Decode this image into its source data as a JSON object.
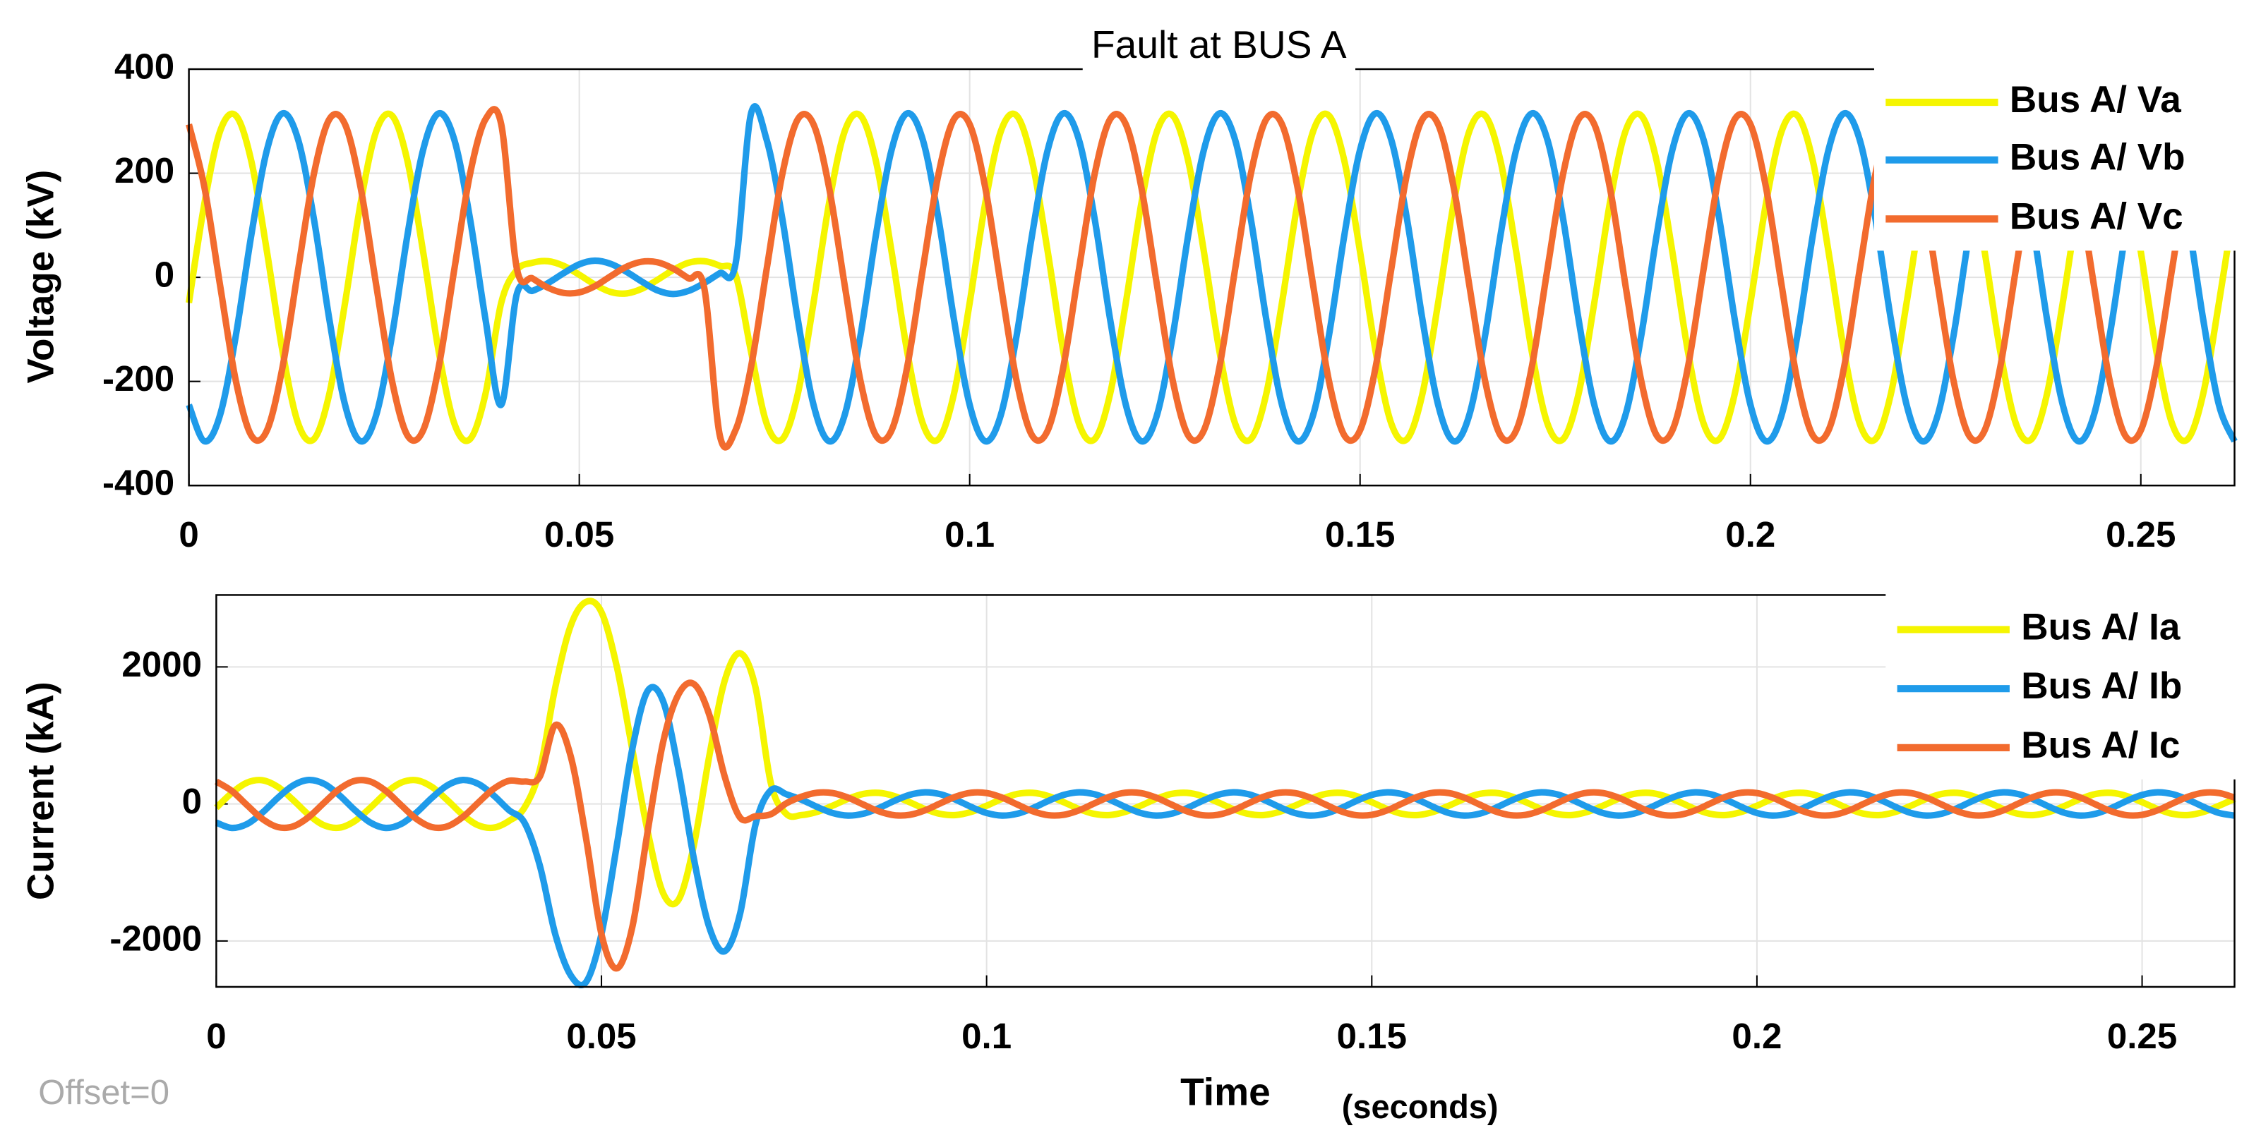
{
  "chart_data": [
    {
      "type": "line",
      "title": "Fault at BUS A",
      "y_label": "Voltage  (kV)",
      "grid": true,
      "legend": "upper right",
      "x": [
        0,
        0.002,
        0.004,
        0.006,
        0.008,
        0.01,
        0.012,
        0.014,
        0.016,
        0.018,
        0.02,
        0.022,
        0.024,
        0.026,
        0.028,
        0.03,
        0.032,
        0.034,
        0.036,
        0.038,
        0.04,
        0.042,
        0.044,
        0.046,
        0.048,
        0.05,
        0.052,
        0.054,
        0.056,
        0.058,
        0.06,
        0.062,
        0.064,
        0.066,
        0.068,
        0.07,
        0.072,
        0.074,
        0.076,
        0.078,
        0.08,
        0.082,
        0.084,
        0.086,
        0.088,
        0.09,
        0.092,
        0.094,
        0.096,
        0.098,
        0.1,
        0.102,
        0.104,
        0.106,
        0.108,
        0.11,
        0.112,
        0.114,
        0.116,
        0.118,
        0.12,
        0.122,
        0.124,
        0.126,
        0.128,
        0.13,
        0.132,
        0.134,
        0.136,
        0.138,
        0.14,
        0.142,
        0.144,
        0.146,
        0.148,
        0.15,
        0.152,
        0.154,
        0.156,
        0.158,
        0.16,
        0.162,
        0.164,
        0.166,
        0.168,
        0.17,
        0.172,
        0.174,
        0.176,
        0.178,
        0.18,
        0.182,
        0.184,
        0.186,
        0.188,
        0.19,
        0.192,
        0.194,
        0.196,
        0.198,
        0.2,
        0.202,
        0.204,
        0.206,
        0.208,
        0.21,
        0.212,
        0.214,
        0.216,
        0.218,
        0.22,
        0.222,
        0.224,
        0.226,
        0.228,
        0.23,
        0.232,
        0.234,
        0.236,
        0.238,
        0.24,
        0.242,
        0.244,
        0.246,
        0.248,
        0.25,
        0.252,
        0.254,
        0.256,
        0.258,
        0.26,
        0.262
      ],
      "xlim": [
        0,
        0.262
      ],
      "xticks": [
        0,
        0.05,
        0.1,
        0.15,
        0.2,
        0.25
      ],
      "ylim": [
        -400,
        400
      ],
      "yticks": [
        -400,
        -200,
        0,
        200,
        400
      ],
      "series": [
        {
          "name": "Bus A/ Va",
          "color": "#f5f500",
          "values": [
            -49,
            143,
            281,
            311,
            223,
            49,
            -143,
            -281,
            -311,
            -223,
            -49,
            143,
            281,
            311,
            223,
            49,
            -143,
            -281,
            -311,
            -223,
            -49,
            14,
            28,
            31,
            22,
            5,
            -14,
            -28,
            -31,
            -22,
            -5,
            14,
            28,
            31,
            22,
            5,
            -143,
            -281,
            -311,
            -223,
            -49,
            143,
            281,
            311,
            223,
            49,
            -143,
            -281,
            -311,
            -223,
            -49,
            143,
            281,
            311,
            223,
            49,
            -143,
            -281,
            -311,
            -223,
            -49,
            143,
            281,
            311,
            223,
            49,
            -143,
            -281,
            -311,
            -223,
            -49,
            143,
            281,
            311,
            223,
            49,
            -143,
            -281,
            -311,
            -223,
            -49,
            143,
            281,
            311,
            223,
            49,
            -143,
            -281,
            -311,
            -223,
            -49,
            143,
            281,
            311,
            223,
            49,
            -143,
            -281,
            -311,
            -223,
            -49,
            143,
            281,
            311,
            223,
            49,
            -143,
            -281,
            -311,
            -223,
            -49,
            143,
            281,
            311,
            223,
            49,
            -143,
            -281,
            -311,
            -223,
            -49,
            143,
            281,
            311,
            223,
            49,
            -143,
            -281,
            -311,
            -223,
            -49,
            143
          ]
        },
        {
          "name": "Bus A/ Vb",
          "color": "#1f9bea",
          "values": [
            -245,
            -315,
            -264,
            -113,
            82,
            245,
            315,
            264,
            113,
            -82,
            -245,
            -315,
            -264,
            -113,
            82,
            245,
            315,
            264,
            113,
            -82,
            -245,
            -32,
            -26,
            -11,
            8,
            25,
            32,
            26,
            11,
            -8,
            -25,
            -32,
            -26,
            -11,
            8,
            25,
            315,
            264,
            113,
            -82,
            -245,
            -315,
            -264,
            -113,
            82,
            245,
            315,
            264,
            113,
            -82,
            -245,
            -315,
            -264,
            -113,
            82,
            245,
            315,
            264,
            113,
            -82,
            -245,
            -315,
            -264,
            -113,
            82,
            245,
            315,
            264,
            113,
            -82,
            -245,
            -315,
            -264,
            -113,
            82,
            245,
            315,
            264,
            113,
            -82,
            -245,
            -315,
            -264,
            -113,
            82,
            245,
            315,
            264,
            113,
            -82,
            -245,
            -315,
            -264,
            -113,
            82,
            245,
            315,
            264,
            113,
            -82,
            -245,
            -315,
            -264,
            -113,
            82,
            245,
            315,
            264,
            113,
            -82,
            -245,
            -315,
            -264,
            -113,
            82,
            245,
            315,
            264,
            113,
            -82,
            -245,
            -315,
            -264,
            -113,
            82,
            245,
            315,
            264,
            113,
            -82,
            -245,
            -315
          ]
        },
        {
          "name": "Bus A/ Vc",
          "color": "#f26b2e",
          "values": [
            294,
            172,
            -16,
            -198,
            -304,
            -294,
            -172,
            16,
            198,
            304,
            294,
            172,
            -16,
            -198,
            -304,
            -294,
            -172,
            16,
            198,
            304,
            294,
            17,
            -2,
            -20,
            -30,
            -29,
            -17,
            2,
            20,
            30,
            29,
            17,
            -2,
            -20,
            -304,
            -294,
            -172,
            16,
            198,
            304,
            294,
            172,
            -16,
            -198,
            -304,
            -294,
            -172,
            16,
            198,
            304,
            294,
            172,
            -16,
            -198,
            -304,
            -294,
            -172,
            16,
            198,
            304,
            294,
            172,
            -16,
            -198,
            -304,
            -294,
            -172,
            16,
            198,
            304,
            294,
            172,
            -16,
            -198,
            -304,
            -294,
            -172,
            16,
            198,
            304,
            294,
            172,
            -16,
            -198,
            -304,
            -294,
            -172,
            16,
            198,
            304,
            294,
            172,
            -16,
            -198,
            -304,
            -294,
            -172,
            16,
            198,
            304,
            294,
            172,
            -16,
            -198,
            -304,
            -294,
            -172,
            16,
            198,
            304,
            294,
            172,
            -16,
            -198,
            -304,
            -294,
            -172,
            16,
            198,
            304,
            294,
            172,
            -16,
            -198,
            -304,
            -294,
            -172,
            16,
            198,
            304,
            294,
            172
          ]
        }
      ]
    },
    {
      "type": "line",
      "y_label": "Current (kA)",
      "x_label": "Time",
      "x_label_unit": "(seconds)",
      "annotation": "Offset=0",
      "grid": true,
      "legend": "upper right",
      "x": [
        0,
        0.002,
        0.004,
        0.006,
        0.008,
        0.01,
        0.012,
        0.014,
        0.016,
        0.018,
        0.02,
        0.022,
        0.024,
        0.026,
        0.028,
        0.03,
        0.032,
        0.034,
        0.036,
        0.038,
        0.04,
        0.042,
        0.044,
        0.046,
        0.048,
        0.05,
        0.052,
        0.054,
        0.056,
        0.058,
        0.06,
        0.062,
        0.064,
        0.066,
        0.068,
        0.07,
        0.072,
        0.074,
        0.076,
        0.078,
        0.08,
        0.082,
        0.084,
        0.086,
        0.088,
        0.09,
        0.092,
        0.094,
        0.096,
        0.098,
        0.1,
        0.102,
        0.104,
        0.106,
        0.108,
        0.11,
        0.112,
        0.114,
        0.116,
        0.118,
        0.12,
        0.122,
        0.124,
        0.126,
        0.128,
        0.13,
        0.132,
        0.134,
        0.136,
        0.138,
        0.14,
        0.142,
        0.144,
        0.146,
        0.148,
        0.15,
        0.152,
        0.154,
        0.156,
        0.158,
        0.16,
        0.162,
        0.164,
        0.166,
        0.168,
        0.17,
        0.172,
        0.174,
        0.176,
        0.178,
        0.18,
        0.182,
        0.184,
        0.186,
        0.188,
        0.19,
        0.192,
        0.194,
        0.196,
        0.198,
        0.2,
        0.202,
        0.204,
        0.206,
        0.208,
        0.21,
        0.212,
        0.214,
        0.216,
        0.218,
        0.22,
        0.222,
        0.224,
        0.226,
        0.228,
        0.23,
        0.232,
        0.234,
        0.236,
        0.238,
        0.24,
        0.242,
        0.244,
        0.246,
        0.248,
        0.25,
        0.252,
        0.254,
        0.256,
        0.258,
        0.26,
        0.262
      ],
      "xlim": [
        0,
        0.262
      ],
      "xticks": [
        0,
        0.05,
        0.1,
        0.15,
        0.2,
        0.25
      ],
      "ylim": [
        -2670,
        3050
      ],
      "yticks": [
        -2000,
        0,
        2000
      ],
      "series": [
        {
          "name": "Bus A/ Ia",
          "color": "#f5f500",
          "values": [
            -55,
            159,
            312,
            346,
            248,
            55,
            -159,
            -312,
            -346,
            -248,
            -55,
            159,
            312,
            346,
            248,
            55,
            -159,
            -312,
            -346,
            -248,
            -55,
            500,
            1700,
            2600,
            2950,
            2800,
            2000,
            800,
            -400,
            -1300,
            -1400,
            -600,
            700,
            1800,
            2200,
            1700,
            300,
            -146,
            -162,
            -116,
            -26,
            74,
            146,
            162,
            116,
            26,
            -74,
            -146,
            -162,
            -116,
            -26,
            74,
            146,
            162,
            116,
            26,
            -74,
            -146,
            -162,
            -116,
            -26,
            74,
            146,
            162,
            116,
            26,
            -74,
            -146,
            -162,
            -116,
            -26,
            74,
            146,
            162,
            116,
            26,
            -74,
            -146,
            -162,
            -116,
            -26,
            74,
            146,
            162,
            116,
            26,
            -74,
            -146,
            -162,
            -116,
            -26,
            74,
            146,
            162,
            116,
            26,
            -74,
            -146,
            -162,
            -116,
            -26,
            74,
            146,
            162,
            116,
            26,
            -74,
            -146,
            -162,
            -116,
            -26,
            74,
            146,
            162,
            116,
            26,
            -74,
            -146,
            -162,
            -116,
            -26,
            74,
            146,
            162,
            116,
            26,
            -74,
            -146,
            -162,
            -116,
            -26,
            74
          ]
        },
        {
          "name": "Bus A/ Ib",
          "color": "#1f9bea",
          "values": [
            -272,
            -350,
            -293,
            -125,
            91,
            272,
            350,
            293,
            125,
            -91,
            -272,
            -350,
            -293,
            -125,
            91,
            272,
            350,
            293,
            125,
            -91,
            -272,
            -900,
            -1900,
            -2500,
            -2600,
            -1900,
            -600,
            800,
            1650,
            1500,
            500,
            -800,
            -1800,
            -2150,
            -1600,
            -300,
            200,
            142,
            61,
            -44,
            -132,
            -170,
            -142,
            -61,
            44,
            132,
            170,
            142,
            61,
            -44,
            -132,
            -170,
            -142,
            -61,
            44,
            132,
            170,
            142,
            61,
            -44,
            -132,
            -170,
            -142,
            -61,
            44,
            132,
            170,
            142,
            61,
            -44,
            -132,
            -170,
            -142,
            -61,
            44,
            132,
            170,
            142,
            61,
            -44,
            -132,
            -170,
            -142,
            -61,
            44,
            132,
            170,
            142,
            61,
            -44,
            -132,
            -170,
            -142,
            -61,
            44,
            132,
            170,
            142,
            61,
            -44,
            -132,
            -170,
            -142,
            -61,
            44,
            132,
            170,
            142,
            61,
            -44,
            -132,
            -170,
            -142,
            -61,
            44,
            132,
            170,
            142,
            61,
            -44,
            -132,
            -170,
            -142,
            -61,
            44,
            132,
            170,
            142,
            61,
            -44,
            -132,
            -170
          ]
        },
        {
          "name": "Bus A/ Ic",
          "color": "#f26b2e",
          "values": [
            327,
            191,
            -18,
            -220,
            -338,
            -327,
            -191,
            18,
            220,
            338,
            327,
            191,
            -18,
            -220,
            -338,
            -327,
            -191,
            18,
            220,
            338,
            327,
            400,
            1150,
            700,
            -500,
            -1900,
            -2400,
            -1800,
            -400,
            900,
            1600,
            1750,
            1300,
            400,
            -200,
            -180,
            -150,
            9,
            107,
            164,
            159,
            93,
            -9,
            -107,
            -164,
            -159,
            -93,
            9,
            107,
            164,
            159,
            93,
            -9,
            -107,
            -164,
            -159,
            -93,
            9,
            107,
            164,
            159,
            93,
            -9,
            -107,
            -164,
            -159,
            -93,
            9,
            107,
            164,
            159,
            93,
            -9,
            -107,
            -164,
            -159,
            -93,
            9,
            107,
            164,
            159,
            93,
            -9,
            -107,
            -164,
            -159,
            -93,
            9,
            107,
            164,
            159,
            93,
            -9,
            -107,
            -164,
            -159,
            -93,
            9,
            107,
            164,
            159,
            93,
            -9,
            -107,
            -164,
            -159,
            -93,
            9,
            107,
            164,
            159,
            93,
            -9,
            -107,
            -164,
            -159,
            -93,
            9,
            107,
            164,
            159,
            93,
            -9,
            -107,
            -164,
            -159,
            -93,
            9,
            107,
            164,
            159,
            93
          ]
        }
      ]
    }
  ]
}
